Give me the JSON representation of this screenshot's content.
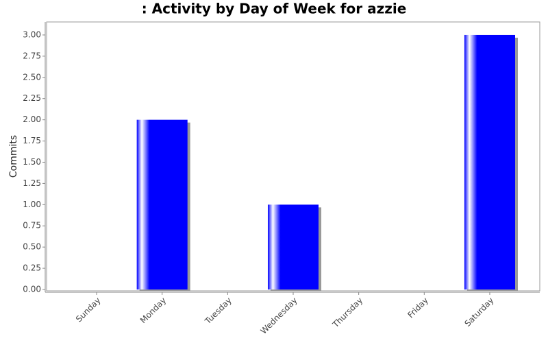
{
  "chart_data": {
    "type": "bar",
    "title": ": Activity by Day of Week for azzie",
    "y_label": "Commits",
    "categories": [
      "Sunday",
      "Monday",
      "Tuesday",
      "Wednesday",
      "Thursday",
      "Friday",
      "Saturday"
    ],
    "values": [
      0,
      2,
      0,
      1,
      0,
      0,
      3
    ],
    "color": "#0000ff",
    "ylim": [
      0,
      3.15
    ],
    "yticks": [
      {
        "value": 0,
        "label": "0.00"
      },
      {
        "value": 0.25,
        "label": "0.25"
      },
      {
        "value": 0.5,
        "label": "0.50"
      },
      {
        "value": 0.75,
        "label": "0.75"
      },
      {
        "value": 1,
        "label": "1.00"
      },
      {
        "value": 1.25,
        "label": "1.25"
      },
      {
        "value": 1.5,
        "label": "1.50"
      },
      {
        "value": 1.75,
        "label": "1.75"
      },
      {
        "value": 2,
        "label": "2.00"
      },
      {
        "value": 2.25,
        "label": "2.25"
      },
      {
        "value": 2.5,
        "label": "2.50"
      },
      {
        "value": 2.75,
        "label": "2.75"
      },
      {
        "value": 3,
        "label": "3.00"
      }
    ],
    "grid": false
  }
}
